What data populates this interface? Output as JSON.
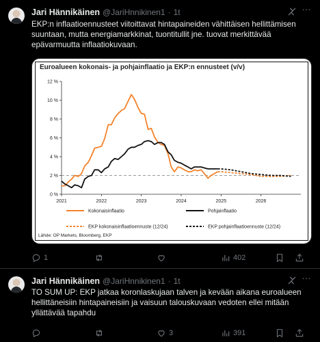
{
  "tweets": [
    {
      "name": "Jari Hännikäinen",
      "handle": "@JariHnnikinen1",
      "dot": "·",
      "time": "1t",
      "text": "EKP:n inflaatioennusteet viitoittavat hintapaineiden vähittäisen hellittämisen suuntaan, mutta energiamarkkinat, tuontitullit jne. tuovat merkittävää epävarmuutta inflaatiokuvaan.",
      "stats": {
        "replies": "1",
        "retweets": "",
        "likes": "",
        "views": "402"
      }
    },
    {
      "name": "Jari Hännikäinen",
      "handle": "@JariHnnikinen1",
      "dot": "·",
      "time": "1t",
      "text": "TO SUM UP: EKP jatkaa koronlaskujaan talven ja kevään aikana euroalueen hellittäneisiin hintapaineisiin ja vaisuun talouskuvaan vedoten ellei mitään yllättävää tapahdu",
      "stats": {
        "replies": "",
        "retweets": "",
        "likes": "3",
        "views": "391"
      }
    }
  ],
  "chart_data": {
    "type": "line",
    "title": "Euroalueen kokonais- ja pohjainflaatio ja EKP:n ennusteet (v/v)",
    "source": "Lähde: OP Markets, Bloomberg, EKP",
    "xlabel": "",
    "ylabel": "",
    "xlim": [
      2021.0,
      2027.0
    ],
    "ylim": [
      0,
      12
    ],
    "yticks": [
      "0 %",
      "2 %",
      "4 %",
      "6 %",
      "8 %",
      "10 %",
      "12 %"
    ],
    "xticks": [
      "2021",
      "2022",
      "2023",
      "2024",
      "2025",
      "2026"
    ],
    "reference_line": 2,
    "series": [
      {
        "name": "Kokonaisinflaatio",
        "color": "#f4822a",
        "style": "solid",
        "x": [
          2021.0,
          2021.08,
          2021.17,
          2021.25,
          2021.33,
          2021.42,
          2021.5,
          2021.58,
          2021.67,
          2021.75,
          2021.83,
          2021.92,
          2022.0,
          2022.08,
          2022.17,
          2022.25,
          2022.33,
          2022.42,
          2022.5,
          2022.58,
          2022.67,
          2022.75,
          2022.83,
          2022.92,
          2023.0,
          2023.08,
          2023.17,
          2023.25,
          2023.33,
          2023.42,
          2023.5,
          2023.58,
          2023.67,
          2023.75,
          2023.83,
          2023.92,
          2024.0,
          2024.08,
          2024.17,
          2024.25,
          2024.33,
          2024.42,
          2024.5,
          2024.58,
          2024.67,
          2024.75,
          2024.83,
          2024.92
        ],
        "values": [
          0.9,
          0.9,
          1.3,
          1.6,
          2.0,
          1.9,
          2.2,
          3.0,
          3.4,
          4.1,
          4.9,
          5.0,
          5.1,
          5.9,
          7.4,
          7.4,
          8.1,
          8.6,
          8.9,
          9.1,
          9.9,
          10.6,
          10.1,
          9.2,
          8.6,
          8.5,
          6.9,
          7.0,
          6.1,
          5.5,
          5.3,
          5.2,
          4.3,
          2.9,
          2.4,
          2.9,
          2.8,
          2.6,
          2.4,
          2.4,
          2.6,
          2.5,
          2.6,
          2.2,
          1.7,
          2.0,
          2.2,
          2.4
        ]
      },
      {
        "name": "Pohjainflaatio",
        "color": "#111111",
        "style": "solid",
        "x": [
          2021.0,
          2021.08,
          2021.17,
          2021.25,
          2021.33,
          2021.42,
          2021.5,
          2021.58,
          2021.67,
          2021.75,
          2021.83,
          2021.92,
          2022.0,
          2022.08,
          2022.17,
          2022.25,
          2022.33,
          2022.42,
          2022.5,
          2022.58,
          2022.67,
          2022.75,
          2022.83,
          2022.92,
          2023.0,
          2023.08,
          2023.17,
          2023.25,
          2023.33,
          2023.42,
          2023.5,
          2023.58,
          2023.67,
          2023.75,
          2023.83,
          2023.92,
          2024.0,
          2024.08,
          2024.17,
          2024.25,
          2024.33,
          2024.42,
          2024.5,
          2024.58,
          2024.67,
          2024.75,
          2024.83,
          2024.92
        ],
        "values": [
          1.4,
          1.1,
          0.9,
          0.7,
          1.0,
          0.9,
          0.7,
          1.6,
          1.9,
          2.0,
          2.6,
          2.6,
          2.3,
          2.7,
          2.9,
          3.5,
          3.8,
          3.7,
          4.0,
          4.3,
          4.8,
          5.0,
          5.0,
          5.2,
          5.3,
          5.6,
          5.7,
          5.6,
          5.3,
          5.5,
          5.5,
          5.3,
          4.5,
          4.2,
          3.6,
          3.4,
          3.3,
          3.1,
          2.9,
          2.7,
          2.9,
          2.9,
          2.9,
          2.8,
          2.7,
          2.7,
          2.7,
          2.7
        ]
      },
      {
        "name": "EKP kokonaisinflaatioennuste (12/24)",
        "color": "#f4822a",
        "style": "dashed",
        "x": [
          2024.92,
          2025.0,
          2025.25,
          2025.5,
          2025.75,
          2026.0,
          2026.25,
          2026.5,
          2026.75
        ],
        "values": [
          2.4,
          2.4,
          2.3,
          2.2,
          2.1,
          1.9,
          1.9,
          1.9,
          2.0
        ]
      },
      {
        "name": "EKP pohjainflaatioennuste (12/24)",
        "color": "#111111",
        "style": "dashed",
        "x": [
          2024.92,
          2025.0,
          2025.25,
          2025.5,
          2025.75,
          2026.0,
          2026.25,
          2026.5,
          2026.75
        ],
        "values": [
          2.7,
          2.7,
          2.6,
          2.4,
          2.2,
          2.1,
          2.0,
          2.0,
          1.9
        ]
      }
    ],
    "legend_placement": "bottom"
  }
}
